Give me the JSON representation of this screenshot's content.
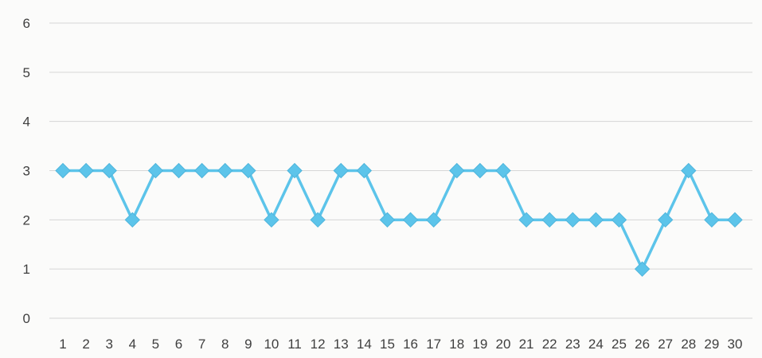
{
  "chart_data": {
    "type": "line",
    "title": "",
    "xlabel": "",
    "ylabel": "",
    "x": [
      "1",
      "2",
      "3",
      "4",
      "5",
      "6",
      "7",
      "8",
      "9",
      "10",
      "11",
      "12",
      "13",
      "14",
      "15",
      "16",
      "17",
      "18",
      "19",
      "20",
      "21",
      "22",
      "23",
      "24",
      "25",
      "26",
      "27",
      "28",
      "29",
      "30"
    ],
    "series": [
      {
        "values": [
          3,
          3,
          3,
          2,
          3,
          3,
          3,
          3,
          3,
          2,
          3,
          2,
          3,
          3,
          2,
          2,
          2,
          3,
          3,
          3,
          2,
          2,
          2,
          2,
          2,
          1,
          2,
          3,
          2,
          2
        ],
        "color": "#5cc4ea",
        "marker": "diamond"
      }
    ],
    "ylim": [
      0,
      6
    ],
    "yticks": [
      "0",
      "1",
      "2",
      "3",
      "4",
      "5",
      "6"
    ],
    "grid": true,
    "legend": "none"
  }
}
